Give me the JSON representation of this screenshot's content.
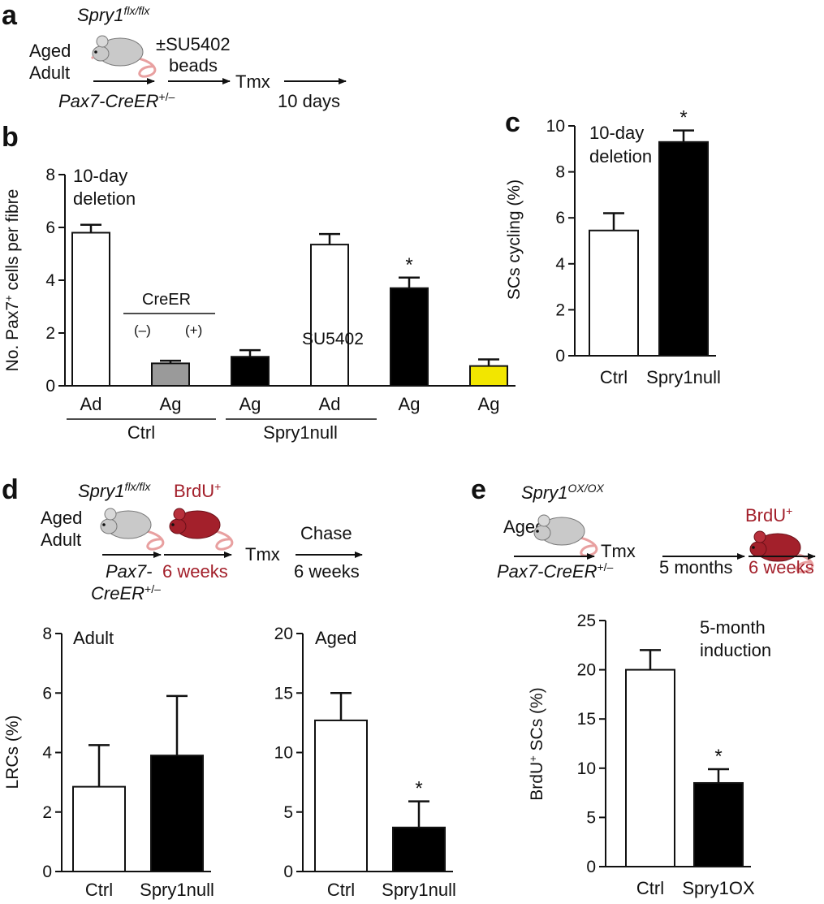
{
  "panels": {
    "a": {
      "letter": "a",
      "genotype_main": "Spry1",
      "genotype_sup": "flx/flx",
      "age_1": "Aged",
      "age_2": "Adult",
      "beads_1": "±SU5402",
      "beads_2": "beads",
      "tmx": "Tmx",
      "driver_main": "Pax7-CreER",
      "driver_sup": "+/–",
      "duration": "10 days"
    },
    "b": {
      "letter": "b",
      "annotation_1": "10-day",
      "annotation_2": "deletion",
      "creer_label": "CreER",
      "minus_label": "(–)",
      "plus_label": "(+)",
      "su_label": "SU5402",
      "group_ctrl": "Ctrl",
      "group_null": "Spry1null"
    },
    "c": {
      "letter": "c",
      "annotation_1": "10-day",
      "annotation_2": "deletion"
    },
    "d": {
      "letter": "d",
      "genotype_main": "Spry1",
      "genotype_sup": "flx/flx",
      "brdu_main": "BrdU",
      "brdu_sup": "+",
      "age_1": "Aged",
      "age_2": "Adult",
      "driver_1": "Pax7-",
      "driver_2_main": "CreER",
      "driver_2_sup": "+/–",
      "weeks": "6 weeks",
      "tmx": "Tmx",
      "chase": "Chase",
      "chase_weeks": "6 weeks"
    },
    "e": {
      "letter": "e",
      "genotype_main": "Spry1",
      "genotype_sup": "OX/OX",
      "brdu_main": "BrdU",
      "brdu_sup": "+",
      "age": "Aged",
      "tmx": "Tmx",
      "driver_main": "Pax7-CreER",
      "driver_sup": "+/–",
      "months": "5 months",
      "weeks": "6 weeks",
      "annotation_1": "5-month",
      "annotation_2": "induction"
    }
  },
  "colors": {
    "mouse_grey": "#c9c9c9",
    "mouse_red": "#a3202b",
    "bar_white": "#ffffff",
    "bar_grey": "#9a9a9a",
    "bar_black": "#000000",
    "bar_yellow": "#f2e600",
    "tail_pink": "#e8a0a0"
  },
  "chart_data": [
    {
      "id": "b",
      "type": "bar",
      "ylabel": "No. Pax7+ cells per fibre",
      "ylim": [
        0,
        8
      ],
      "yticks": [
        0,
        2,
        4,
        6,
        8
      ],
      "categories": [
        "Ad",
        "Ag",
        "Ag",
        "Ad",
        "Ag",
        "Ag"
      ],
      "values": [
        5.8,
        0.85,
        1.1,
        5.35,
        3.7,
        0.75
      ],
      "errors": [
        0.3,
        0.1,
        0.25,
        0.4,
        0.4,
        0.25
      ],
      "fills": [
        "#ffffff",
        "#9a9a9a",
        "#000000",
        "#ffffff",
        "#000000",
        "#f2e600"
      ],
      "significance": [
        "",
        "",
        "",
        "",
        "*",
        ""
      ]
    },
    {
      "id": "c",
      "type": "bar",
      "ylabel": "SCs cycling (%)",
      "ylim": [
        0,
        10
      ],
      "yticks": [
        0,
        2,
        4,
        6,
        8,
        10
      ],
      "categories": [
        "Ctrl",
        "Spry1null"
      ],
      "values": [
        5.45,
        9.3
      ],
      "errors": [
        0.75,
        0.5
      ],
      "fills": [
        "#ffffff",
        "#000000"
      ],
      "significance": [
        "",
        "*"
      ]
    },
    {
      "id": "d-adult",
      "type": "bar",
      "ylabel": "LRCs (%)",
      "title": "Adult",
      "ylim": [
        0,
        8
      ],
      "yticks": [
        0,
        2,
        4,
        6,
        8
      ],
      "categories": [
        "Ctrl",
        "Spry1null"
      ],
      "values": [
        2.85,
        3.9
      ],
      "errors": [
        1.4,
        2.0
      ],
      "fills": [
        "#ffffff",
        "#000000"
      ],
      "significance": [
        "",
        ""
      ]
    },
    {
      "id": "d-aged",
      "type": "bar",
      "title": "Aged",
      "ylim": [
        0,
        20
      ],
      "yticks": [
        0,
        5,
        10,
        15,
        20
      ],
      "categories": [
        "Ctrl",
        "Spry1null"
      ],
      "values": [
        12.7,
        3.7
      ],
      "errors": [
        2.3,
        2.2
      ],
      "fills": [
        "#ffffff",
        "#000000"
      ],
      "significance": [
        "",
        "*"
      ]
    },
    {
      "id": "e",
      "type": "bar",
      "ylabel": "BrdU+ SCs (%)",
      "ylim": [
        0,
        25
      ],
      "yticks": [
        0,
        5,
        10,
        15,
        20,
        25
      ],
      "categories": [
        "Ctrl",
        "Spry1OX"
      ],
      "values": [
        20.0,
        8.5
      ],
      "errors": [
        2.0,
        1.4
      ],
      "fills": [
        "#ffffff",
        "#000000"
      ],
      "significance": [
        "",
        "*"
      ]
    }
  ]
}
